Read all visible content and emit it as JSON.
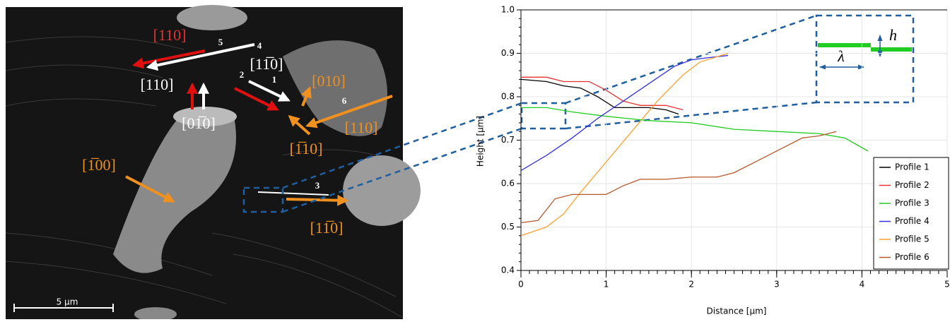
{
  "image": {
    "labels": [
      "[110]",
      "5",
      "4",
      "[110]",
      "[11̅0]",
      "2",
      "1",
      "[010]",
      "6",
      "[01̅0]",
      "[110]",
      "[1̅10]",
      "[1̅00]",
      "3",
      "[11̅0]",
      "5 µm"
    ]
  },
  "chart_data": {
    "type": "line",
    "xlabel": "Distance [µm]",
    "ylabel": "Height [µm]",
    "xlim": [
      0,
      5
    ],
    "ylim": [
      0.4,
      1.0
    ],
    "xticks": [
      0,
      1,
      2,
      3,
      4,
      5
    ],
    "yticks": [
      0.4,
      0.5,
      0.6,
      0.7,
      0.8,
      0.9,
      {
        "value": 1,
        "label": "1.0"
      }
    ],
    "grid": true,
    "legend": "lower right",
    "annotations": [
      "λ",
      "h"
    ],
    "series": [
      {
        "name": "Profile 1",
        "color": "#000000",
        "x": [
          0,
          0.3,
          0.5,
          0.7,
          0.9,
          1.1,
          1.3,
          1.5,
          1.7,
          1.85
        ],
        "values": [
          0.84,
          0.835,
          0.825,
          0.82,
          0.8,
          0.775,
          0.775,
          0.775,
          0.77,
          0.76
        ]
      },
      {
        "name": "Profile 2",
        "color": "#e8312f",
        "x": [
          0,
          0.3,
          0.5,
          0.8,
          1.0,
          1.2,
          1.4,
          1.7,
          1.9
        ],
        "values": [
          0.845,
          0.845,
          0.835,
          0.835,
          0.815,
          0.79,
          0.78,
          0.78,
          0.77
        ]
      },
      {
        "name": "Profile 3",
        "color": "#22cc22",
        "x": [
          0,
          0.3,
          0.6,
          1.0,
          1.5,
          2.0,
          2.5,
          3.0,
          3.5,
          3.8,
          4.07
        ],
        "values": [
          0.775,
          0.775,
          0.765,
          0.755,
          0.745,
          0.74,
          0.725,
          0.72,
          0.715,
          0.705,
          0.675
        ]
      },
      {
        "name": "Profile 4",
        "color": "#3030e0",
        "x": [
          0,
          0.3,
          0.6,
          0.9,
          1.2,
          1.5,
          1.8,
          2.0,
          2.2,
          2.43
        ],
        "values": [
          0.63,
          0.665,
          0.705,
          0.75,
          0.79,
          0.83,
          0.87,
          0.885,
          0.89,
          0.895
        ]
      },
      {
        "name": "Profile 5",
        "color": "#ffa030",
        "x": [
          0,
          0.3,
          0.5,
          0.7,
          1.0,
          1.3,
          1.6,
          1.9,
          2.1,
          2.43
        ],
        "values": [
          0.48,
          0.5,
          0.53,
          0.58,
          0.65,
          0.72,
          0.79,
          0.85,
          0.88,
          0.9
        ]
      },
      {
        "name": "Profile 6",
        "color": "#b5572a",
        "x": [
          0,
          0.2,
          0.3,
          0.4,
          0.6,
          1.0,
          1.2,
          1.4,
          1.7,
          2.0,
          2.3,
          2.5,
          2.8,
          3.1,
          3.3,
          3.5,
          3.7
        ],
        "values": [
          0.51,
          0.515,
          0.54,
          0.565,
          0.575,
          0.575,
          0.595,
          0.61,
          0.61,
          0.615,
          0.615,
          0.625,
          0.655,
          0.685,
          0.705,
          0.71,
          0.72
        ]
      }
    ]
  }
}
